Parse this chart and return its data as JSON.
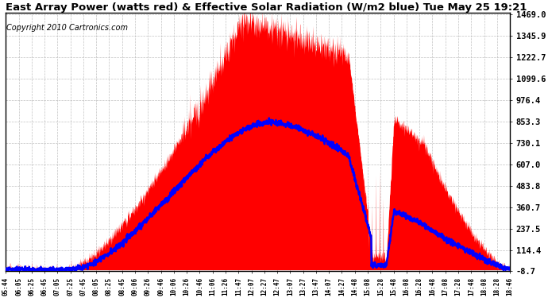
{
  "title": "East Array Power (watts red) & Effective Solar Radiation (W/m2 blue) Tue May 25 19:21",
  "copyright": "Copyright 2010 Cartronics.com",
  "yticks": [
    1469.0,
    1345.9,
    1222.7,
    1099.6,
    976.4,
    853.3,
    730.1,
    607.0,
    483.8,
    360.7,
    237.5,
    114.4,
    -8.7
  ],
  "ymin": -8.7,
  "ymax": 1469.0,
  "xtick_labels": [
    "05:44",
    "06:05",
    "06:25",
    "06:45",
    "07:05",
    "07:25",
    "07:45",
    "08:05",
    "08:25",
    "08:45",
    "09:06",
    "09:26",
    "09:46",
    "10:06",
    "10:26",
    "10:46",
    "11:06",
    "11:26",
    "11:47",
    "12:07",
    "12:27",
    "12:47",
    "13:07",
    "13:27",
    "13:47",
    "14:07",
    "14:27",
    "14:48",
    "15:08",
    "15:28",
    "15:48",
    "16:08",
    "16:28",
    "16:48",
    "17:08",
    "17:28",
    "17:48",
    "18:08",
    "18:28",
    "18:46"
  ],
  "bg_color": "#ffffff",
  "grid_color": "#bbbbbb",
  "red_color": "#ff0000",
  "blue_color": "#0000ff",
  "title_fontsize": 9.5,
  "copyright_fontsize": 7,
  "power_peak": 1450,
  "power_peak_t": 0.47,
  "radiation_peak": 850,
  "radiation_peak_t": 0.53
}
